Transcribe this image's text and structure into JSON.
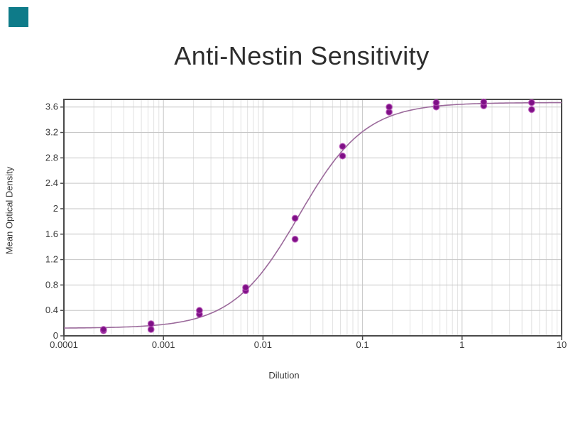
{
  "brand": {
    "name": "teal-square-mark",
    "color": "#0e7b89"
  },
  "chart_data": {
    "type": "scatter",
    "title": "Anti-Nestin Sensitivity",
    "xlabel": "Dilution",
    "ylabel": "Mean Optical Density",
    "x_scale": "log",
    "xlim": [
      0.0001,
      10
    ],
    "ylim": [
      0,
      3.72
    ],
    "grid": {
      "major": true,
      "minor_x_log": true
    },
    "legend_position": "none",
    "x_ticks": [
      {
        "value": 0.0001,
        "label": "0.0001"
      },
      {
        "value": 0.001,
        "label": "0.001"
      },
      {
        "value": 0.01,
        "label": "0.01"
      },
      {
        "value": 0.1,
        "label": "0.1"
      },
      {
        "value": 1,
        "label": "1"
      },
      {
        "value": 10,
        "label": "10"
      }
    ],
    "y_ticks": [
      {
        "value": 0,
        "label": "0"
      },
      {
        "value": 0.4,
        "label": "0.4"
      },
      {
        "value": 0.8,
        "label": "0.8"
      },
      {
        "value": 1.2,
        "label": "1.2"
      },
      {
        "value": 1.6,
        "label": "1.6"
      },
      {
        "value": 2,
        "label": "2"
      },
      {
        "value": 2.4,
        "label": "2.4"
      },
      {
        "value": 2.8,
        "label": "2.8"
      },
      {
        "value": 3.2,
        "label": "3.2"
      },
      {
        "value": 3.6,
        "label": "3.6"
      }
    ],
    "series": [
      {
        "name": "replicate-od-readings",
        "type": "scatter",
        "points": [
          {
            "x": 0.00025,
            "y": 0.08
          },
          {
            "x": 0.00025,
            "y": 0.1
          },
          {
            "x": 0.00075,
            "y": 0.1
          },
          {
            "x": 0.00075,
            "y": 0.19
          },
          {
            "x": 0.0023,
            "y": 0.34
          },
          {
            "x": 0.0023,
            "y": 0.4
          },
          {
            "x": 0.0067,
            "y": 0.71
          },
          {
            "x": 0.0067,
            "y": 0.76
          },
          {
            "x": 0.021,
            "y": 1.52
          },
          {
            "x": 0.021,
            "y": 1.85
          },
          {
            "x": 0.063,
            "y": 2.83
          },
          {
            "x": 0.063,
            "y": 2.98
          },
          {
            "x": 0.185,
            "y": 3.52
          },
          {
            "x": 0.185,
            "y": 3.6
          },
          {
            "x": 0.55,
            "y": 3.6
          },
          {
            "x": 0.55,
            "y": 3.67
          },
          {
            "x": 1.65,
            "y": 3.62
          },
          {
            "x": 1.65,
            "y": 3.68
          },
          {
            "x": 5,
            "y": 3.56
          },
          {
            "x": 5,
            "y": 3.67
          }
        ]
      },
      {
        "name": "four-parameter-logistic-fit",
        "type": "curve",
        "fit": {
          "model": "4PL",
          "bottom": 0.12,
          "top": 3.67,
          "ec50": 0.023,
          "hill": 1.3
        }
      }
    ],
    "colors": {
      "point": "#7e1086",
      "point_halo": "#b44bb4",
      "curve": "#9b6a9b",
      "grid_major": "#c6c6c6",
      "grid_minor": "#e2e2e2",
      "axis": "#4a4a4a",
      "tick_text": "#3a3a3a",
      "title_text": "#2d2d2d"
    }
  }
}
